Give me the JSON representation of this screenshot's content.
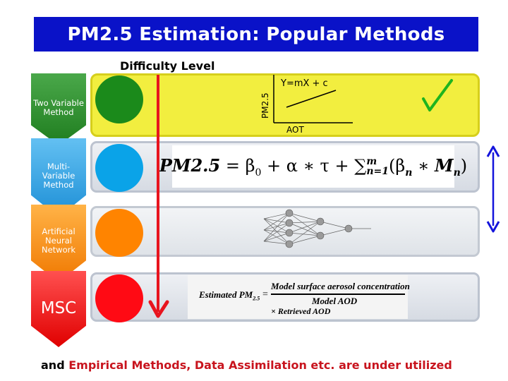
{
  "title": "PM2.5 Estimation: Popular Methods",
  "difficulty_label": "Difficulty Level",
  "rows": [
    {
      "label": "Two Variable Method",
      "color": "#1b8a1b"
    },
    {
      "label": "Multi-Variable Method",
      "color": "#0aa3e8"
    },
    {
      "label": "Artificial Neural Network",
      "color": "#ff8400"
    },
    {
      "label": "MSC",
      "color": "#ff0a14"
    }
  ],
  "linear_plot": {
    "equation": "Y=mX + c",
    "y_axis_label": "PM2.5",
    "x_axis_label": "AOT"
  },
  "multi_variable_formula": {
    "lhs": "PM2.5",
    "eq": " = ",
    "beta": "β",
    "beta_sub": "0",
    "plus1": " + α ∗ τ + ",
    "sum": "∑",
    "sum_sub": "n=1",
    "sum_sup": "m",
    "open": "(β",
    "beta_n_sub": "n",
    "times": " ∗ ",
    "m_var": "M",
    "m_sub": "n",
    "close": ")"
  },
  "msc_formula": {
    "lhs": "Estimated PM",
    "lhs_sub": "2.5",
    "eq": "=",
    "numerator": "Model surface aerosol concentration",
    "denominator": "Model AOD",
    "multiplier": "× Retrieved AOD"
  },
  "footer": {
    "prefix": "and ",
    "highlight": "Empirical Methods, Data Assimilation etc. are under utilized"
  },
  "colors": {
    "title_bar": "#0a12c8",
    "arrow_red": "#e8141e",
    "double_arrow_blue": "#1414dc",
    "check_green": "#1eb41e",
    "footer_prefix": "#000000",
    "footer_highlight": "#c8141e"
  }
}
